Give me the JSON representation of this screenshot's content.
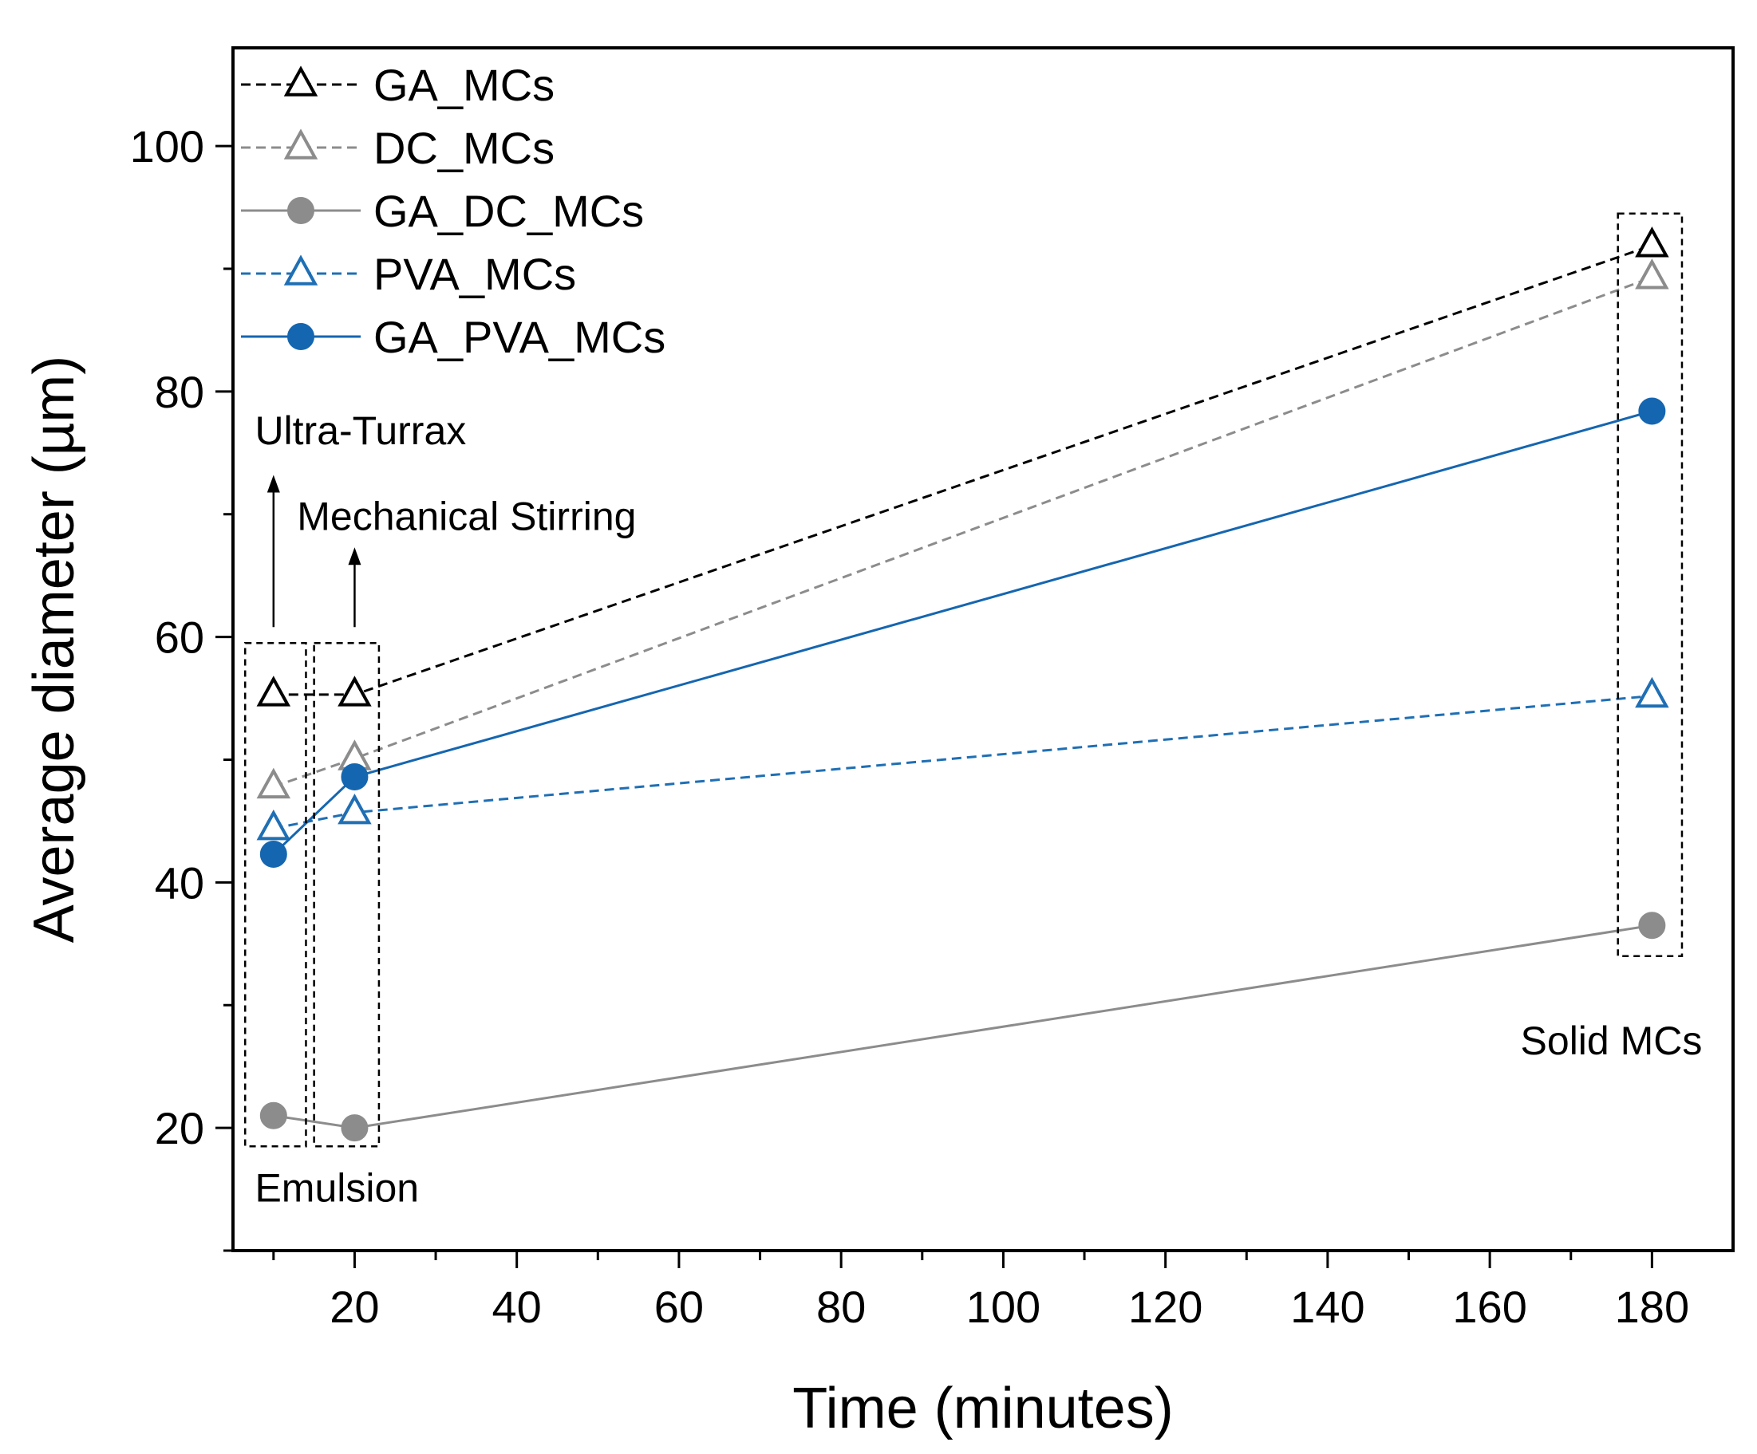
{
  "chart_data": {
    "type": "line",
    "xlabel": "Time (minutes)",
    "ylabel": "Average diameter (µm)",
    "xlim": [
      5,
      190
    ],
    "ylim": [
      10,
      108
    ],
    "xticks": [
      20,
      40,
      60,
      80,
      100,
      120,
      140,
      160,
      180
    ],
    "yticks": [
      20,
      40,
      60,
      80,
      100
    ],
    "legend_position": "top-left",
    "grid": false,
    "series": [
      {
        "name": "GA_MCs",
        "color": "#000000",
        "marker": "open-triangle",
        "line": "dashed",
        "x": [
          10,
          20,
          180
        ],
        "y": [
          55.3,
          55.3,
          91.9
        ]
      },
      {
        "name": "DC_MCs",
        "color": "#8c8c8c",
        "marker": "open-triangle",
        "line": "dashed",
        "x": [
          10,
          20,
          180
        ],
        "y": [
          47.8,
          50.1,
          89.3
        ]
      },
      {
        "name": "GA_DC_MCs",
        "color": "#8c8c8c",
        "marker": "filled-circle",
        "line": "solid",
        "x": [
          10,
          20,
          180
        ],
        "y": [
          21.0,
          20.0,
          36.5
        ]
      },
      {
        "name": "PVA_MCs",
        "color": "#1f6fb4",
        "marker": "open-triangle",
        "line": "dashed",
        "x": [
          10,
          20,
          180
        ],
        "y": [
          44.4,
          45.7,
          55.2
        ]
      },
      {
        "name": "GA_PVA_MCs",
        "color": "#1566b0",
        "marker": "filled-circle",
        "line": "solid",
        "x": [
          10,
          20,
          180
        ],
        "y": [
          42.3,
          48.6,
          78.4
        ]
      }
    ],
    "annotations": [
      {
        "text": "Ultra-Turrax",
        "arrow_x": 10
      },
      {
        "text": "Mechanical Stirring",
        "arrow_x": 20
      },
      {
        "text": "Emulsion"
      },
      {
        "text": "Solid MCs"
      }
    ]
  }
}
